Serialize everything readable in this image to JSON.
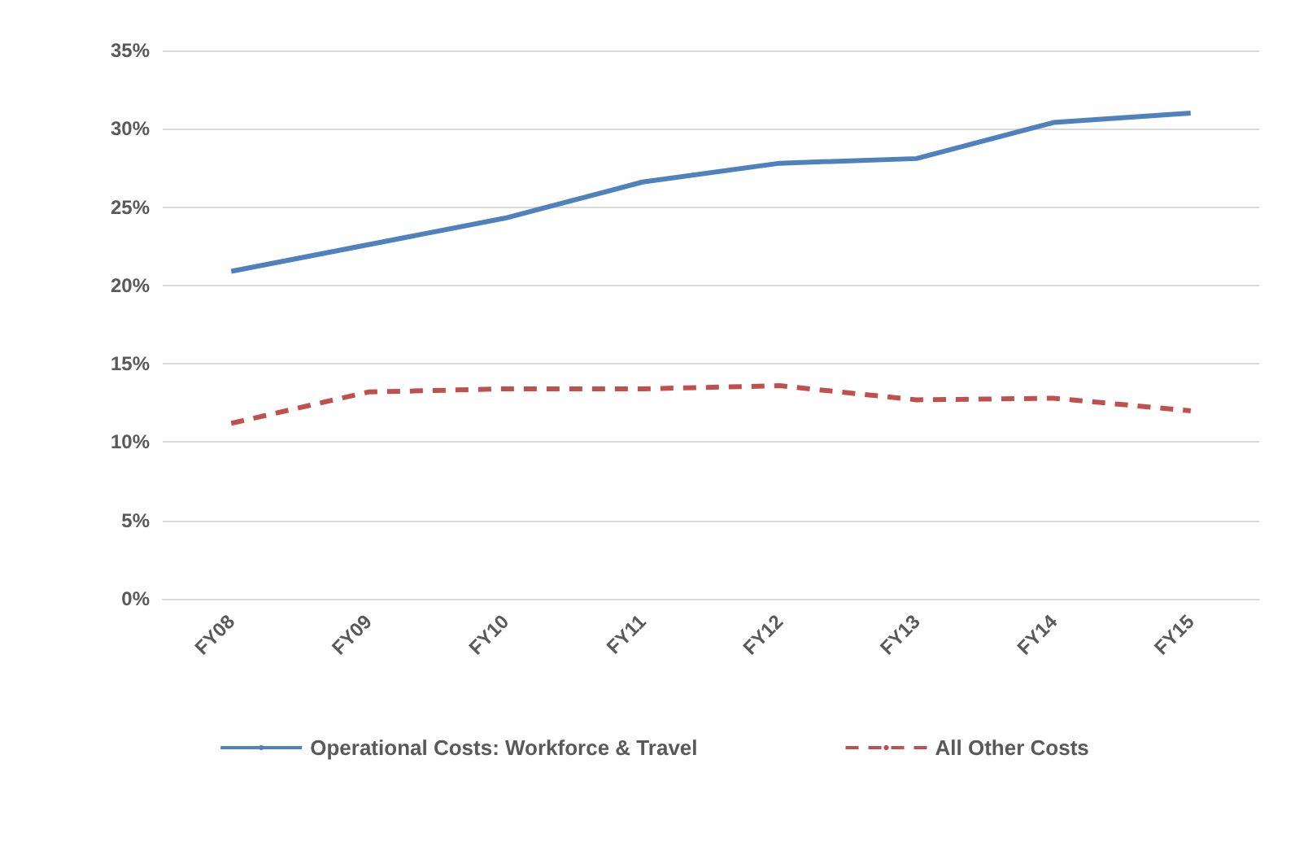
{
  "chart_data": {
    "type": "line",
    "categories": [
      "FY08",
      "FY09",
      "FY10",
      "FY11",
      "FY12",
      "FY13",
      "FY14",
      "FY15"
    ],
    "series": [
      {
        "name": "Operational Costs: Workforce & Travel",
        "color": "#4f81bd",
        "line_style": "solid",
        "values": [
          20.9,
          22.6,
          24.3,
          26.6,
          27.8,
          28.1,
          30.4,
          31.0
        ]
      },
      {
        "name": "All Other Costs",
        "color": "#c0504d",
        "line_style": "dashed",
        "values": [
          11.2,
          13.2,
          13.4,
          13.4,
          13.6,
          12.7,
          12.8,
          12.0
        ]
      }
    ],
    "ylim": [
      0,
      35
    ],
    "yticks": [
      {
        "value": 0,
        "label": "0%"
      },
      {
        "value": 5,
        "label": "5%"
      },
      {
        "value": 10,
        "label": "10%"
      },
      {
        "value": 15,
        "label": "15%"
      },
      {
        "value": 20,
        "label": "20%"
      },
      {
        "value": 25,
        "label": "25%"
      },
      {
        "value": 30,
        "label": "30%"
      },
      {
        "value": 35,
        "label": "35%"
      }
    ],
    "grid": "y",
    "legend": "bottom",
    "marker": "none"
  }
}
